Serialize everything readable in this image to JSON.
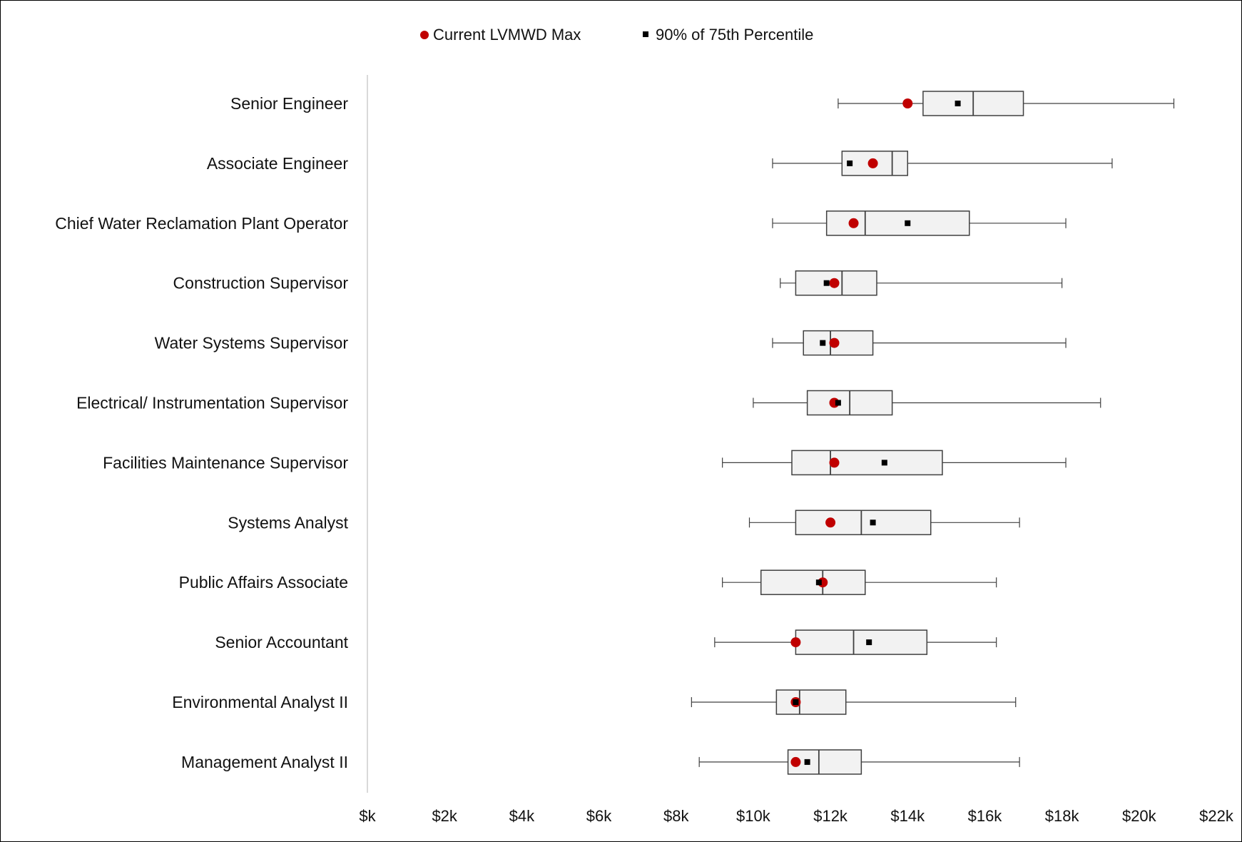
{
  "chart_data": {
    "type": "boxplot",
    "orientation": "horizontal",
    "legend": [
      {
        "name": "Current LVMWD Max",
        "marker": "circle",
        "color": "#c00000"
      },
      {
        "name": "90% of 75th Percentile",
        "marker": "square",
        "color": "#000000"
      }
    ],
    "legend_position": "top",
    "xlim": [
      0,
      22000
    ],
    "xticks": [
      0,
      2000,
      4000,
      6000,
      8000,
      10000,
      12000,
      14000,
      16000,
      18000,
      20000,
      22000
    ],
    "xtick_labels": [
      "$k",
      "$2k",
      "$4k",
      "$6k",
      "$8k",
      "$10k",
      "$12k",
      "$14k",
      "$16k",
      "$18k",
      "$20k",
      "$22k"
    ],
    "categories": [
      "Senior Engineer",
      "Associate Engineer",
      "Chief Water Reclamation Plant Operator",
      "Construction Supervisor",
      "Water Systems Supervisor",
      "Electrical/ Instrumentation Supervisor",
      "Facilities Maintenance Supervisor",
      "Systems Analyst",
      "Public Affairs Associate",
      "Senior Accountant",
      "Environmental Analyst II",
      "Management Analyst II"
    ],
    "boxes": [
      {
        "min": 12200,
        "q1": 14400,
        "median": 15700,
        "q3": 17000,
        "max": 20900,
        "current_max": 14000,
        "p75_90": 15300
      },
      {
        "min": 10500,
        "q1": 12300,
        "median": 13600,
        "q3": 14000,
        "max": 19300,
        "current_max": 13100,
        "p75_90": 12500
      },
      {
        "min": 10500,
        "q1": 11900,
        "median": 12900,
        "q3": 15600,
        "max": 18100,
        "current_max": 12600,
        "p75_90": 14000
      },
      {
        "min": 10700,
        "q1": 11100,
        "median": 12300,
        "q3": 13200,
        "max": 18000,
        "current_max": 12100,
        "p75_90": 11900
      },
      {
        "min": 10500,
        "q1": 11300,
        "median": 12000,
        "q3": 13100,
        "max": 18100,
        "current_max": 12100,
        "p75_90": 11800
      },
      {
        "min": 10000,
        "q1": 11400,
        "median": 12500,
        "q3": 13600,
        "max": 19000,
        "current_max": 12100,
        "p75_90": 12200
      },
      {
        "min": 9200,
        "q1": 11000,
        "median": 12000,
        "q3": 14900,
        "max": 18100,
        "current_max": 12100,
        "p75_90": 13400
      },
      {
        "min": 9900,
        "q1": 11100,
        "median": 12800,
        "q3": 14600,
        "max": 16900,
        "current_max": 12000,
        "p75_90": 13100
      },
      {
        "min": 9200,
        "q1": 10200,
        "median": 11800,
        "q3": 12900,
        "max": 16300,
        "current_max": 11800,
        "p75_90": 11700
      },
      {
        "min": 9000,
        "q1": 11100,
        "median": 12600,
        "q3": 14500,
        "max": 16300,
        "current_max": 11100,
        "p75_90": 13000
      },
      {
        "min": 8400,
        "q1": 10600,
        "median": 11200,
        "q3": 12400,
        "max": 16800,
        "current_max": 11100,
        "p75_90": 11100
      },
      {
        "min": 8600,
        "q1": 10900,
        "median": 11700,
        "q3": 12800,
        "max": 16900,
        "current_max": 11100,
        "p75_90": 11400
      }
    ],
    "grid": false,
    "box_fill": "#f2f2f2",
    "box_stroke": "#404040",
    "axis_line_color": "#d9d9d9"
  }
}
